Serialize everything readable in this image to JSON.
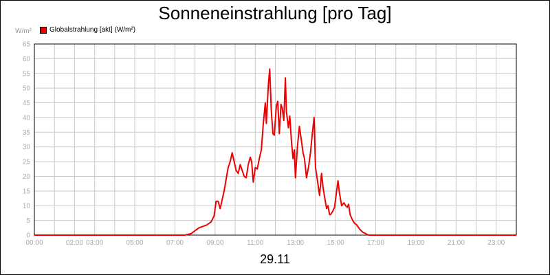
{
  "chart_data": {
    "type": "line",
    "title": "Sonneneinstrahlung [pro Tag]",
    "xlabel": "29.11",
    "ylabel": "W/m²",
    "ylim": [
      0,
      65
    ],
    "xlim": [
      0,
      24
    ],
    "yticks": [
      0,
      5,
      10,
      15,
      20,
      25,
      30,
      35,
      40,
      45,
      50,
      55,
      60,
      65
    ],
    "xticks": [
      {
        "v": 0,
        "label": "00:00"
      },
      {
        "v": 2,
        "label": "02:00"
      },
      {
        "v": 3,
        "label": "03:00"
      },
      {
        "v": 5,
        "label": "05:00"
      },
      {
        "v": 7,
        "label": "07:00"
      },
      {
        "v": 9,
        "label": "09:00"
      },
      {
        "v": 11,
        "label": "11:00"
      },
      {
        "v": 13,
        "label": "13:00"
      },
      {
        "v": 15,
        "label": "15:00"
      },
      {
        "v": 17,
        "label": "17:00"
      },
      {
        "v": 19,
        "label": "19:00"
      },
      {
        "v": 21,
        "label": "21:00"
      },
      {
        "v": 23,
        "label": "23:00"
      }
    ],
    "grid": true,
    "legend_position": "top-left",
    "series": [
      {
        "name": "Globalstrahlung [akt] (W/m²)",
        "color": "#ee0000",
        "x": [
          0,
          7.5,
          7.8,
          8.0,
          8.2,
          8.4,
          8.6,
          8.8,
          8.95,
          9.05,
          9.15,
          9.25,
          9.35,
          9.45,
          9.55,
          9.65,
          9.75,
          9.85,
          9.95,
          10.05,
          10.15,
          10.25,
          10.35,
          10.45,
          10.55,
          10.65,
          10.75,
          10.82,
          10.9,
          11.0,
          11.1,
          11.2,
          11.3,
          11.4,
          11.5,
          11.55,
          11.65,
          11.72,
          11.8,
          11.88,
          11.95,
          12.05,
          12.12,
          12.2,
          12.28,
          12.35,
          12.42,
          12.5,
          12.55,
          12.65,
          12.72,
          12.8,
          12.88,
          12.95,
          13.0,
          13.1,
          13.2,
          13.3,
          13.38,
          13.45,
          13.55,
          13.65,
          13.75,
          13.85,
          13.93,
          14.0,
          14.1,
          14.2,
          14.3,
          14.38,
          14.45,
          14.55,
          14.62,
          14.7,
          14.75,
          14.85,
          14.95,
          15.05,
          15.12,
          15.2,
          15.3,
          15.42,
          15.5,
          15.58,
          15.65,
          15.72,
          15.85,
          15.95,
          16.05,
          16.2,
          16.35,
          16.5,
          16.65,
          16.8,
          17.0,
          18.0,
          24.0
        ],
        "y": [
          0,
          0,
          0.5,
          1.5,
          2.5,
          3,
          3.5,
          4.5,
          6.5,
          11.5,
          11.5,
          9,
          12,
          15,
          19,
          23,
          25,
          28,
          25,
          22,
          21,
          24,
          22,
          20,
          19.5,
          24,
          26.5,
          25,
          18,
          23,
          22.5,
          26,
          29,
          38,
          45,
          38,
          51,
          56.5,
          42,
          34.5,
          34,
          44,
          45.5,
          34.5,
          44.5,
          43,
          39,
          53.5,
          42,
          36.5,
          40.5,
          32,
          26,
          29,
          19.5,
          30,
          37,
          32,
          28,
          26,
          19.5,
          23,
          28,
          35,
          40,
          23,
          18.5,
          13.5,
          21,
          16,
          13,
          9,
          10,
          7,
          7,
          8,
          9.5,
          15,
          18.5,
          14,
          10,
          11,
          10,
          9.5,
          10.5,
          7,
          5,
          4,
          3.5,
          2,
          1,
          0.5,
          0,
          0,
          0,
          0,
          0
        ]
      }
    ]
  }
}
